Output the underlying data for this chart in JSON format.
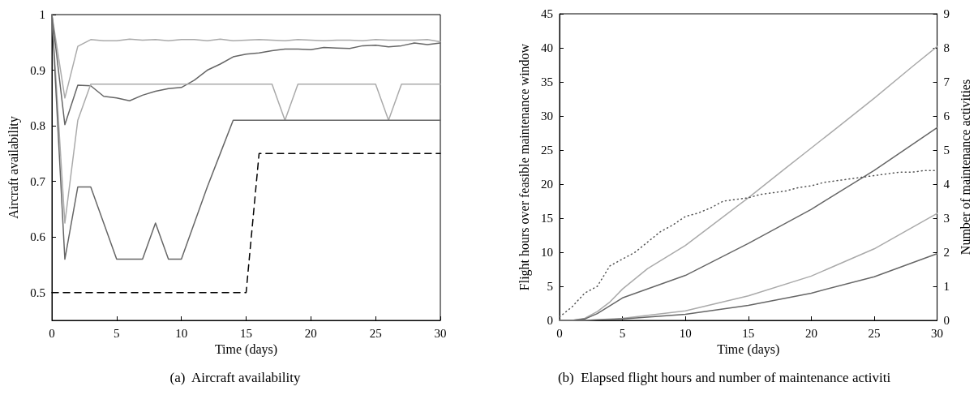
{
  "chart_data": [
    {
      "type": "line",
      "title": "(a)  Aircraft availability",
      "xlabel": "Time (days)",
      "ylabel": "Aircraft availability",
      "xlim": [
        0,
        30
      ],
      "xticks": [
        0,
        5,
        10,
        15,
        20,
        25,
        30
      ],
      "ylim": [
        0.45,
        1
      ],
      "yticks": [
        0.5,
        0.6,
        0.7,
        0.8,
        0.9,
        1
      ],
      "marker": "none",
      "series": [
        {
          "color": "#aaaaaa",
          "line_style": "solid",
          "x": [
            0,
            1,
            2,
            3,
            4,
            5,
            6,
            7,
            8,
            9,
            10,
            11,
            12,
            13,
            14,
            15,
            16,
            17,
            18,
            19,
            20,
            21,
            22,
            23,
            24,
            25,
            26,
            27,
            28,
            29,
            30
          ],
          "values": [
            1,
            0.85,
            0.943,
            0.955,
            0.953,
            0.953,
            0.956,
            0.954,
            0.955,
            0.953,
            0.955,
            0.955,
            0.953,
            0.956,
            0.953,
            0.954,
            0.955,
            0.954,
            0.953,
            0.955,
            0.954,
            0.953,
            0.954,
            0.954,
            0.953,
            0.955,
            0.954,
            0.954,
            0.954,
            0.955,
            0.951
          ]
        },
        {
          "color": "#666666",
          "line_style": "solid",
          "x": [
            0,
            1,
            2,
            3,
            4,
            5,
            6,
            7,
            8,
            9,
            10,
            11,
            12,
            13,
            14,
            15,
            16,
            17,
            18,
            19,
            20,
            21,
            22,
            23,
            24,
            25,
            26,
            27,
            28,
            29,
            30
          ],
          "values": [
            1,
            0.802,
            0.873,
            0.872,
            0.853,
            0.85,
            0.845,
            0.855,
            0.862,
            0.867,
            0.869,
            0.882,
            0.9,
            0.911,
            0.924,
            0.929,
            0.931,
            0.935,
            0.938,
            0.938,
            0.937,
            0.941,
            0.94,
            0.939,
            0.944,
            0.945,
            0.942,
            0.944,
            0.949,
            0.946,
            0.949
          ]
        },
        {
          "color": "#aaaaaa",
          "line_style": "solid",
          "x": [
            0,
            1,
            2,
            3,
            4,
            5,
            6,
            7,
            8,
            9,
            10,
            11,
            12,
            13,
            14,
            15,
            16,
            17,
            18,
            19,
            20,
            21,
            22,
            23,
            24,
            25,
            26,
            27,
            28,
            29,
            30
          ],
          "values": [
            1,
            0.625,
            0.81,
            0.875,
            0.875,
            0.875,
            0.875,
            0.875,
            0.875,
            0.875,
            0.875,
            0.875,
            0.875,
            0.875,
            0.875,
            0.875,
            0.875,
            0.875,
            0.81,
            0.875,
            0.875,
            0.875,
            0.875,
            0.875,
            0.875,
            0.875,
            0.81,
            0.875,
            0.875,
            0.875,
            0.875
          ]
        },
        {
          "color": "#666666",
          "line_style": "solid",
          "x": [
            0,
            1,
            2,
            3,
            4,
            5,
            6,
            7,
            8,
            9,
            10,
            11,
            12,
            13,
            14,
            15,
            16,
            17,
            18,
            19,
            20,
            21,
            22,
            23,
            24,
            25,
            26,
            27,
            28,
            29,
            30
          ],
          "values": [
            1,
            0.56,
            0.69,
            0.69,
            0.625,
            0.56,
            0.56,
            0.56,
            0.625,
            0.56,
            0.56,
            0.625,
            0.69,
            0.75,
            0.81,
            0.81,
            0.81,
            0.81,
            0.81,
            0.81,
            0.81,
            0.81,
            0.81,
            0.81,
            0.81,
            0.81,
            0.81,
            0.81,
            0.81,
            0.81,
            0.81
          ]
        },
        {
          "color": "#000000",
          "line_style": "dashed",
          "x": [
            0,
            15,
            16,
            30
          ],
          "values": [
            0.5,
            0.5,
            0.75,
            0.75
          ]
        }
      ]
    },
    {
      "type": "line",
      "title": "(b)  Elapsed flight hours and number of maintenance activiti",
      "xlabel": "Time (days)",
      "ylabel": "Flight hours over feasible maintenance window",
      "y2label": "Number of maintenance activities",
      "xlim": [
        0,
        30
      ],
      "xticks": [
        0,
        5,
        10,
        15,
        20,
        25,
        30
      ],
      "ylim": [
        0,
        45
      ],
      "yticks": [
        0,
        5,
        10,
        15,
        20,
        25,
        30,
        35,
        40,
        45
      ],
      "y2lim": [
        0,
        9
      ],
      "y2ticks": [
        0,
        1,
        2,
        3,
        4,
        5,
        6,
        7,
        8,
        9
      ],
      "marker": "none",
      "series": [
        {
          "color": "#aaaaaa",
          "line_style": "solid",
          "x": [
            0,
            1,
            2,
            3,
            4,
            5,
            7,
            10,
            12,
            15,
            18,
            20,
            22,
            25,
            28,
            30
          ],
          "values": [
            0,
            0,
            0.3,
            1.3,
            2.7,
            4.6,
            7.6,
            11,
            13.8,
            18,
            22.4,
            25.3,
            28.2,
            32.6,
            37.2,
            40.2
          ]
        },
        {
          "color": "#666666",
          "line_style": "solid",
          "x": [
            0,
            1,
            2,
            3,
            5,
            10,
            15,
            20,
            25,
            30
          ],
          "values": [
            0,
            0,
            0.2,
            1,
            3.3,
            6.6,
            11.3,
            16.3,
            22,
            28.3
          ]
        },
        {
          "color": "#aaaaaa",
          "line_style": "solid",
          "x": [
            0,
            2,
            5,
            10,
            15,
            20,
            25,
            30
          ],
          "values": [
            0,
            0,
            0.3,
            1.4,
            3.6,
            6.5,
            10.5,
            15.7
          ]
        },
        {
          "color": "#666666",
          "line_style": "solid",
          "x": [
            0,
            2,
            5,
            10,
            15,
            20,
            25,
            30
          ],
          "values": [
            0,
            0,
            0.2,
            0.9,
            2.2,
            4,
            6.4,
            9.8
          ]
        },
        {
          "color": "#555555",
          "line_style": "dotted",
          "axis": "y2",
          "x": [
            0,
            1,
            2,
            3,
            4,
            5,
            6,
            7,
            8,
            9,
            10,
            11,
            12,
            13,
            14,
            15,
            16,
            17,
            18,
            19,
            20,
            21,
            22,
            23,
            24,
            25,
            26,
            27,
            28,
            29,
            30
          ],
          "values": [
            0.1,
            0.4,
            0.8,
            1,
            1.6,
            1.8,
            2,
            2.3,
            2.6,
            2.8,
            3.05,
            3.15,
            3.3,
            3.5,
            3.55,
            3.6,
            3.7,
            3.75,
            3.8,
            3.9,
            3.95,
            4.05,
            4.1,
            4.15,
            4.2,
            4.25,
            4.3,
            4.35,
            4.35,
            4.4,
            4.4
          ]
        }
      ]
    }
  ]
}
